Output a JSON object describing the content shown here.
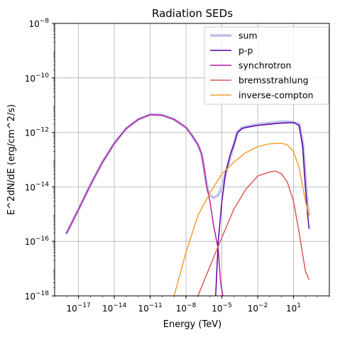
{
  "chart_data": {
    "type": "line",
    "title": "Radiation SEDs",
    "xlabel": "Energy (TeV)",
    "ylabel": "E^2dN/dE (erg/cm^2/s)",
    "x_scale": "log",
    "y_scale": "log",
    "xlim": [
      1e-19,
      10000
    ],
    "ylim": [
      1e-18,
      1e-08
    ],
    "grid": true,
    "legend_position": "top-right",
    "x_ticks": [
      {
        "value": 1e-17,
        "base": "10",
        "exp": "−17"
      },
      {
        "value": 1e-14,
        "base": "10",
        "exp": "−14"
      },
      {
        "value": 1e-11,
        "base": "10",
        "exp": "−11"
      },
      {
        "value": 1e-08,
        "base": "10",
        "exp": "−8"
      },
      {
        "value": 1e-05,
        "base": "10",
        "exp": "−5"
      },
      {
        "value": 0.01,
        "base": "10",
        "exp": "−2"
      },
      {
        "value": 10,
        "base": "10",
        "exp": "1"
      }
    ],
    "y_ticks": [
      {
        "value": 1e-18,
        "base": "10",
        "exp": "−18"
      },
      {
        "value": 1e-16,
        "base": "10",
        "exp": "−16"
      },
      {
        "value": 1e-14,
        "base": "10",
        "exp": "−14"
      },
      {
        "value": 1e-12,
        "base": "10",
        "exp": "−12"
      },
      {
        "value": 1e-10,
        "base": "10",
        "exp": "−10"
      },
      {
        "value": 1e-08,
        "base": "10",
        "exp": "−8"
      }
    ],
    "series": [
      {
        "name": "sum",
        "color": "#c6c6ea",
        "width": 4,
        "x": [
          1e-18,
          1e-17,
          1e-16,
          1e-15,
          1e-14,
          1e-13,
          1e-12,
          1e-11,
          1e-10,
          1e-09,
          1e-08,
          3e-08,
          1e-07,
          2e-07,
          3e-07,
          5e-07,
          7e-07,
          1e-06,
          2e-06,
          5e-06,
          1e-05,
          2e-05,
          5e-05,
          0.0001,
          0.0002,
          0.0005,
          0.001,
          0.01,
          0.1,
          1,
          10,
          30,
          60,
          100,
          150,
          200
        ],
        "y": [
          2e-16,
          1.5e-15,
          1.2e-14,
          8e-14,
          4e-13,
          1.4e-12,
          3e-12,
          4.5e-12,
          4.3e-12,
          3e-12,
          1.5e-12,
          8e-13,
          3.5e-13,
          1.6e-13,
          6e-14,
          1.5e-14,
          7e-15,
          5e-15,
          4e-15,
          5e-15,
          1e-14,
          3e-14,
          1.2e-13,
          3.5e-13,
          1e-12,
          1.5e-12,
          1.6e-12,
          2e-12,
          2.2e-12,
          2.5e-12,
          2.4e-12,
          2e-12,
          4e-13,
          2e-14,
          2e-15,
          1e-15
        ]
      },
      {
        "name": "p-p",
        "color": "#5a00a8",
        "width": 1.5,
        "x": [
          3e-06,
          5e-06,
          1e-05,
          2e-05,
          5e-05,
          0.0001,
          0.0002,
          0.0005,
          0.001,
          0.01,
          0.1,
          1,
          10,
          30,
          60,
          100,
          150,
          200
        ],
        "y": [
          1e-18,
          1e-16,
          3e-15,
          3e-14,
          1.5e-13,
          3.5e-13,
          1e-12,
          1.4e-12,
          1.5e-12,
          1.8e-12,
          2e-12,
          2.2e-12,
          2.3e-12,
          1.8e-12,
          3e-13,
          1e-14,
          1e-15,
          3e-16
        ]
      },
      {
        "name": "synchrotron",
        "color": "#b31fa0",
        "width": 1.5,
        "x": [
          1e-18,
          1e-17,
          1e-16,
          1e-15,
          1e-14,
          1e-13,
          1e-12,
          1e-11,
          1e-10,
          1e-09,
          1e-08,
          3e-08,
          1e-07,
          2e-07,
          3e-07,
          5e-07,
          1e-06,
          2e-06,
          5e-06,
          8e-06,
          1.2e-05
        ],
        "y": [
          2e-16,
          1.5e-15,
          1.2e-14,
          8e-14,
          4e-13,
          1.4e-12,
          3e-12,
          4.5e-12,
          4.3e-12,
          3e-12,
          1.5e-12,
          8e-13,
          3.5e-13,
          1.6e-13,
          6e-14,
          1.2e-14,
          3e-15,
          4e-16,
          5e-17,
          3e-18,
          1e-18
        ]
      },
      {
        "name": "bremsstrahlung",
        "color": "#dc5a5a",
        "width": 1.5,
        "x": [
          1e-07,
          1e-06,
          1e-05,
          0.0001,
          0.001,
          0.01,
          0.1,
          0.3,
          1,
          3,
          10,
          30,
          100,
          200
        ],
        "y": [
          1e-18,
          1.2e-17,
          1.4e-16,
          1.5e-15,
          8e-15,
          2.5e-14,
          3.5e-14,
          3.8e-14,
          3e-14,
          1.5e-14,
          3e-15,
          2e-16,
          8e-18,
          4e-18
        ]
      },
      {
        "name": "inverse-compton",
        "color": "#f5a030",
        "width": 1.5,
        "x": [
          1e-09,
          1e-08,
          1e-07,
          1e-06,
          1e-05,
          0.0001,
          0.001,
          0.01,
          0.1,
          1,
          3,
          10,
          30,
          100,
          200
        ],
        "y": [
          1e-18,
          4e-17,
          9e-16,
          6e-15,
          3e-14,
          8e-14,
          1.8e-13,
          3e-13,
          3.8e-13,
          4e-13,
          3.5e-13,
          2e-13,
          5e-14,
          3e-15,
          9e-16
        ]
      }
    ]
  }
}
